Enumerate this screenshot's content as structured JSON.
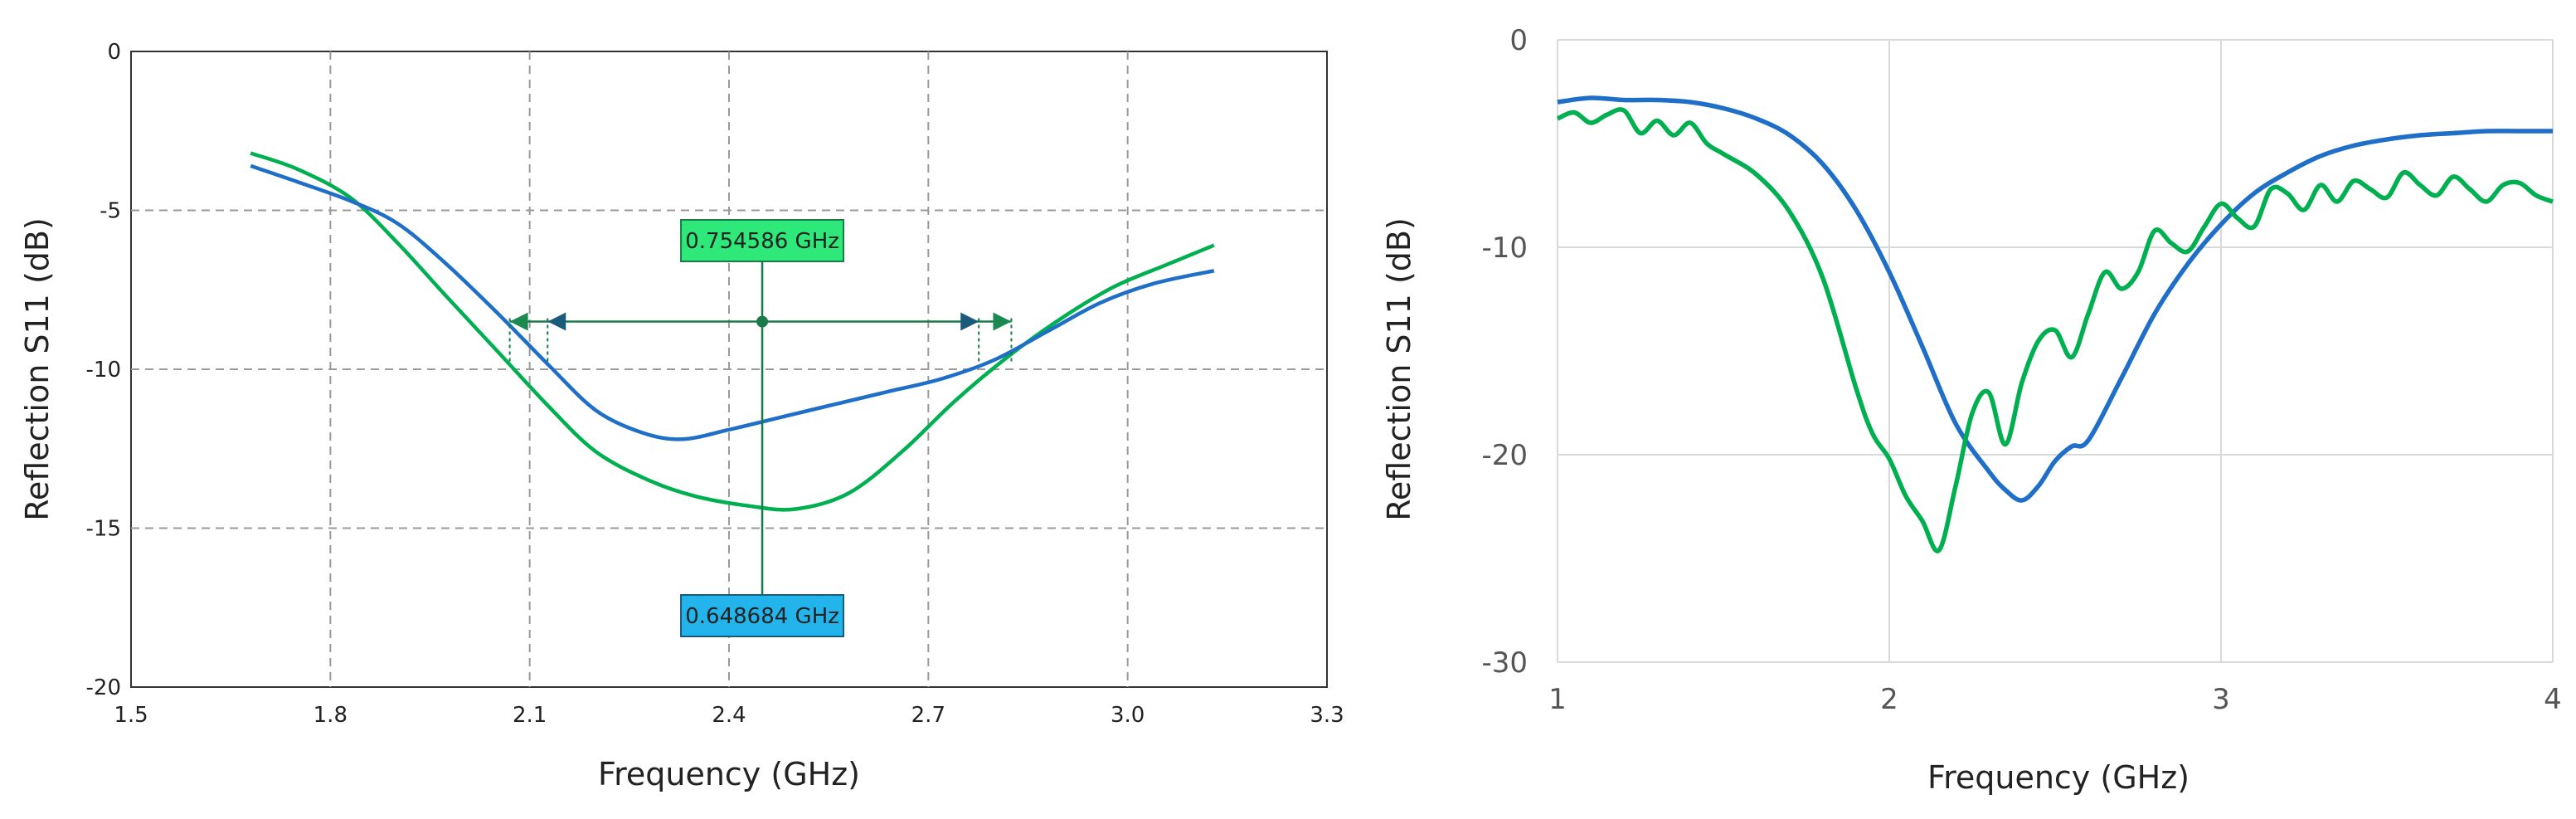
{
  "chart_data": [
    {
      "type": "line",
      "xlabel": "Frequency (GHz)",
      "ylabel": "Reflection S11 (dB)",
      "xlim": [
        1.5,
        3.3
      ],
      "ylim": [
        -20,
        0
      ],
      "x_ticks": [
        "1.5",
        "1.8",
        "2.1",
        "2.4",
        "2.7",
        "3.0",
        "3.3"
      ],
      "y_ticks": [
        "0",
        "-5",
        "-10",
        "-15",
        "-20"
      ],
      "grid": "dashed",
      "colors": {
        "green": "#00b050",
        "blue": "#1f6fc8",
        "marker": "#1a7a4a"
      },
      "series": [
        {
          "color": "#00b050",
          "x": [
            1.68,
            1.75,
            1.83,
            1.9,
            1.97,
            2.05,
            2.13,
            2.2,
            2.28,
            2.35,
            2.43,
            2.5,
            2.58,
            2.66,
            2.74,
            2.82,
            2.9,
            2.98,
            3.06,
            3.13
          ],
          "y": [
            -3.2,
            -3.7,
            -4.6,
            -6.0,
            -7.6,
            -9.4,
            -11.2,
            -12.6,
            -13.5,
            -14.0,
            -14.3,
            -14.4,
            -13.9,
            -12.6,
            -11.0,
            -9.6,
            -8.4,
            -7.4,
            -6.7,
            -6.1
          ]
        },
        {
          "color": "#1f6fc8",
          "x": [
            1.68,
            1.75,
            1.83,
            1.9,
            1.97,
            2.05,
            2.13,
            2.2,
            2.27,
            2.33,
            2.4,
            2.48,
            2.56,
            2.64,
            2.72,
            2.8,
            2.88,
            2.96,
            3.04,
            3.13
          ],
          "y": [
            -3.6,
            -4.1,
            -4.7,
            -5.4,
            -6.6,
            -8.2,
            -9.9,
            -11.3,
            -12.0,
            -12.2,
            -11.9,
            -11.5,
            -11.1,
            -10.7,
            -10.3,
            -9.7,
            -8.8,
            -7.9,
            -7.3,
            -6.9
          ]
        }
      ],
      "markers": {
        "green_label": "0.754586 GHz",
        "blue_label": "0.648684 GHz",
        "green_range": [
          2.07,
          2.825
        ],
        "blue_range": [
          2.127,
          2.776
        ],
        "level": -8.5,
        "center": 2.45
      }
    },
    {
      "type": "line",
      "xlabel": "Frequency (GHz)",
      "ylabel": "Reflection S11 (dB)",
      "xlim": [
        1,
        4
      ],
      "ylim": [
        -30,
        0
      ],
      "x_ticks": [
        "1",
        "2",
        "3",
        "4"
      ],
      "y_ticks": [
        "0",
        "-10",
        "-20",
        "-30"
      ],
      "grid": "solid",
      "series": [
        {
          "color": "#1f6fc8",
          "x": [
            1.0,
            1.1,
            1.2,
            1.3,
            1.4,
            1.5,
            1.6,
            1.7,
            1.8,
            1.9,
            2.0,
            2.1,
            2.2,
            2.3,
            2.35,
            2.4,
            2.45,
            2.5,
            2.55,
            2.6,
            2.7,
            2.8,
            2.9,
            3.0,
            3.1,
            3.2,
            3.3,
            3.4,
            3.5,
            3.6,
            3.7,
            3.8,
            3.9,
            4.0
          ],
          "y": [
            -3.0,
            -2.8,
            -2.9,
            -2.9,
            -3.0,
            -3.3,
            -3.8,
            -4.6,
            -6.0,
            -8.2,
            -11.2,
            -14.8,
            -18.5,
            -20.8,
            -21.7,
            -22.2,
            -21.5,
            -20.3,
            -19.6,
            -19.3,
            -16.3,
            -13.2,
            -10.8,
            -8.9,
            -7.4,
            -6.4,
            -5.6,
            -5.1,
            -4.8,
            -4.6,
            -4.5,
            -4.4,
            -4.4,
            -4.4
          ]
        },
        {
          "color": "#00b050",
          "x": [
            1.0,
            1.05,
            1.1,
            1.15,
            1.2,
            1.25,
            1.3,
            1.35,
            1.4,
            1.45,
            1.5,
            1.6,
            1.7,
            1.8,
            1.9,
            1.95,
            2.0,
            2.05,
            2.1,
            2.15,
            2.2,
            2.25,
            2.3,
            2.35,
            2.4,
            2.45,
            2.5,
            2.55,
            2.6,
            2.65,
            2.7,
            2.75,
            2.8,
            2.85,
            2.9,
            2.95,
            3.0,
            3.05,
            3.1,
            3.15,
            3.2,
            3.25,
            3.3,
            3.35,
            3.4,
            3.45,
            3.5,
            3.55,
            3.6,
            3.65,
            3.7,
            3.75,
            3.8,
            3.85,
            3.9,
            3.95,
            4.0
          ],
          "y": [
            -3.8,
            -3.5,
            -4.0,
            -3.6,
            -3.4,
            -4.5,
            -3.9,
            -4.6,
            -4.0,
            -5.0,
            -5.5,
            -6.5,
            -8.3,
            -11.5,
            -16.8,
            -19.0,
            -20.2,
            -22.0,
            -23.2,
            -24.6,
            -21.5,
            -18.0,
            -17.0,
            -19.5,
            -16.5,
            -14.5,
            -14.0,
            -15.3,
            -13.2,
            -11.2,
            -12.0,
            -11.2,
            -9.2,
            -9.8,
            -10.2,
            -9.0,
            -7.9,
            -8.6,
            -9.0,
            -7.2,
            -7.4,
            -8.2,
            -7.0,
            -7.8,
            -6.8,
            -7.2,
            -7.6,
            -6.4,
            -7.0,
            -7.5,
            -6.6,
            -7.2,
            -7.8,
            -7.0,
            -6.9,
            -7.5,
            -7.8
          ]
        }
      ]
    }
  ]
}
